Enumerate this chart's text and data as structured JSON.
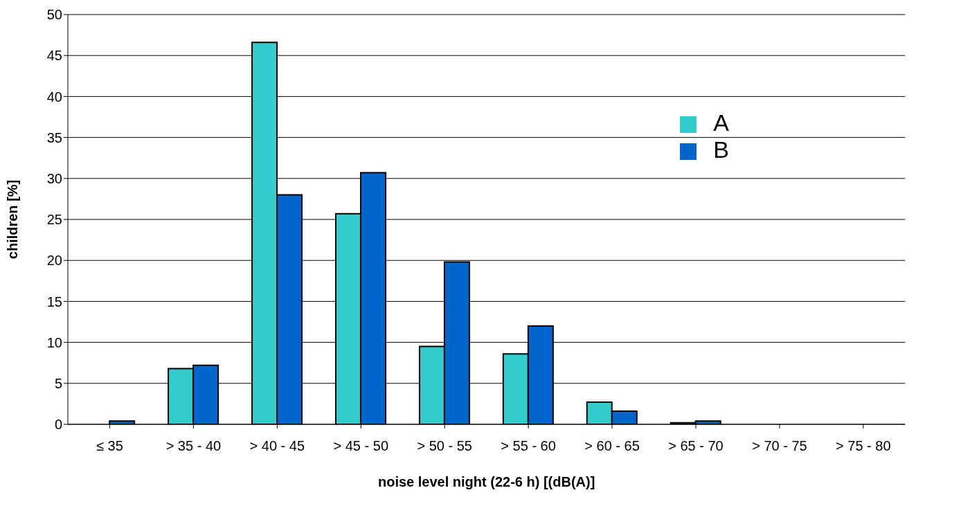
{
  "chart_data": {
    "type": "bar",
    "xlabel": "noise level night (22-6 h) [(dB(A)]",
    "ylabel": "children [%]",
    "categories": [
      "≤ 35",
      "> 35 - 40",
      "> 40 - 45",
      "> 45 - 50",
      "> 50 - 55",
      "> 55 - 60",
      "> 60 - 65",
      "> 65 - 70",
      "> 70 - 75",
      "> 75 - 80"
    ],
    "series": [
      {
        "name": "A",
        "color": "#33cccc",
        "values": [
          0,
          6.8,
          46.6,
          25.7,
          9.5,
          8.6,
          2.7,
          0.2,
          0,
          0
        ]
      },
      {
        "name": "B",
        "color": "#0066cc",
        "values": [
          0.4,
          7.2,
          28,
          30.7,
          19.8,
          12,
          1.6,
          0.4,
          0,
          0
        ]
      }
    ],
    "ylim": [
      0,
      50
    ],
    "yticks": [
      0,
      5,
      10,
      15,
      20,
      25,
      30,
      35,
      40,
      45,
      50
    ],
    "grid": "y",
    "legend": "top right"
  }
}
